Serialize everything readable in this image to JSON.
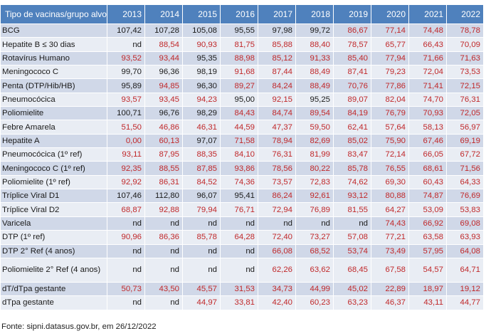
{
  "table": {
    "header_label": "Tipo de vacinas/grupo alvo",
    "years": [
      "2013",
      "2014",
      "2015",
      "2016",
      "2017",
      "2018",
      "2019",
      "2020",
      "2021",
      "2022"
    ],
    "low_color": "#c0282a",
    "header_color": "#4f81bd",
    "rows": [
      {
        "name": "BCG",
        "values": [
          "107,42",
          "107,28",
          "105,08",
          "95,55",
          "97,98",
          "99,72",
          "86,67",
          "77,14",
          "74,48",
          "78,78"
        ],
        "low": [
          false,
          false,
          false,
          false,
          false,
          false,
          true,
          true,
          true,
          true
        ]
      },
      {
        "name": "Hepatite B ≤ 30 dias",
        "values": [
          "nd",
          "88,54",
          "90,93",
          "81,75",
          "85,88",
          "88,40",
          "78,57",
          "65,77",
          "66,43",
          "70,09"
        ],
        "low": [
          false,
          true,
          true,
          true,
          true,
          true,
          true,
          true,
          true,
          true
        ]
      },
      {
        "name": "Rotavírus Humano",
        "values": [
          "93,52",
          "93,44",
          "95,35",
          "88,98",
          "85,12",
          "91,33",
          "85,40",
          "77,94",
          "71,66",
          "71,63"
        ],
        "low": [
          true,
          true,
          false,
          true,
          true,
          true,
          true,
          true,
          true,
          true
        ]
      },
      {
        "name": "Meningococo C",
        "values": [
          "99,70",
          "96,36",
          "98,19",
          "91,68",
          "87,44",
          "88,49",
          "87,41",
          "79,23",
          "72,04",
          "73,53"
        ],
        "low": [
          false,
          false,
          false,
          true,
          true,
          true,
          true,
          true,
          true,
          true
        ]
      },
      {
        "name": "Penta (DTP/Hib/HB)",
        "values": [
          "95,89",
          "94,85",
          "96,30",
          "89,27",
          "84,24",
          "88,49",
          "70,76",
          "77,86",
          "71,41",
          "72,15"
        ],
        "low": [
          false,
          true,
          false,
          true,
          true,
          true,
          true,
          true,
          true,
          true
        ]
      },
      {
        "name": "Pneumocócica",
        "values": [
          "93,57",
          "93,45",
          "94,23",
          "95,00",
          "92,15",
          "95,25",
          "89,07",
          "82,04",
          "74,70",
          "76,31"
        ],
        "low": [
          true,
          true,
          true,
          false,
          true,
          false,
          true,
          true,
          true,
          true
        ]
      },
      {
        "name": "Poliomielite",
        "values": [
          "100,71",
          "96,76",
          "98,29",
          "84,43",
          "84,74",
          "89,54",
          "84,19",
          "76,79",
          "70,93",
          "72,05"
        ],
        "low": [
          false,
          false,
          false,
          true,
          true,
          true,
          true,
          true,
          true,
          true
        ]
      },
      {
        "name": "Febre Amarela",
        "values": [
          "51,50",
          "46,86",
          "46,31",
          "44,59",
          "47,37",
          "59,50",
          "62,41",
          "57,64",
          "58,13",
          "56,97"
        ],
        "low": [
          true,
          true,
          true,
          true,
          true,
          true,
          true,
          true,
          true,
          true
        ]
      },
      {
        "name": "Hepatite A",
        "values": [
          "0,00",
          "60,13",
          "97,07",
          "71,58",
          "78,94",
          "82,69",
          "85,02",
          "75,90",
          "67,46",
          "69,19"
        ],
        "low": [
          true,
          true,
          false,
          true,
          true,
          true,
          true,
          true,
          true,
          true
        ]
      },
      {
        "name": "Pneumocócica (1º ref)",
        "values": [
          "93,11",
          "87,95",
          "88,35",
          "84,10",
          "76,31",
          "81,99",
          "83,47",
          "72,14",
          "66,05",
          "67,72"
        ],
        "low": [
          true,
          true,
          true,
          true,
          true,
          true,
          true,
          true,
          true,
          true
        ]
      },
      {
        "name": "Meningococo C (1º ref)",
        "values": [
          "92,35",
          "88,55",
          "87,85",
          "93,86",
          "78,56",
          "80,22",
          "85,78",
          "76,55",
          "68,61",
          "71,56"
        ],
        "low": [
          true,
          true,
          true,
          true,
          true,
          true,
          true,
          true,
          true,
          true
        ]
      },
      {
        "name": "Poliomielite  (1º ref)",
        "values": [
          "92,92",
          "86,31",
          "84,52",
          "74,36",
          "73,57",
          "72,83",
          "74,62",
          "69,30",
          "60,43",
          "64,33"
        ],
        "low": [
          true,
          true,
          true,
          true,
          true,
          true,
          true,
          true,
          true,
          true
        ]
      },
      {
        "name": "Tríplice Viral  D1",
        "values": [
          "107,46",
          "112,80",
          "96,07",
          "95,41",
          "86,24",
          "92,61",
          "93,12",
          "80,88",
          "74,87",
          "76,69"
        ],
        "low": [
          false,
          false,
          false,
          false,
          true,
          true,
          true,
          true,
          true,
          true
        ]
      },
      {
        "name": "Tríplice Viral  D2",
        "values": [
          "68,87",
          "92,88",
          "79,94",
          "76,71",
          "72,94",
          "76,89",
          "81,55",
          "64,27",
          "53,09",
          "53,83"
        ],
        "low": [
          true,
          true,
          true,
          true,
          true,
          true,
          true,
          true,
          true,
          true
        ]
      },
      {
        "name": "Varicela",
        "values": [
          "nd",
          "nd",
          "nd",
          "nd",
          "nd",
          "nd",
          "nd",
          "74,43",
          "66,92",
          "69,08"
        ],
        "low": [
          false,
          false,
          false,
          false,
          false,
          false,
          false,
          true,
          true,
          true
        ]
      },
      {
        "name": "DTP (1º ref)",
        "values": [
          "90,96",
          "86,36",
          "85,78",
          "64,28",
          "72,40",
          "73,27",
          "57,08",
          "77,21",
          "63,58",
          "63,93"
        ],
        "low": [
          true,
          true,
          true,
          true,
          true,
          true,
          true,
          true,
          true,
          true
        ]
      },
      {
        "name": "DTP 2° Ref (4 anos)",
        "values": [
          "nd",
          "nd",
          "nd",
          "nd",
          "66,08",
          "68,52",
          "53,74",
          "73,49",
          "57,95",
          "64,08"
        ],
        "low": [
          false,
          false,
          false,
          false,
          true,
          true,
          true,
          true,
          true,
          true
        ]
      },
      {
        "name": "Poliomielite  2° Ref (4 anos)",
        "values": [
          "nd",
          "nd",
          "nd",
          "nd",
          "62,26",
          "63,62",
          "68,45",
          "67,58",
          "54,57",
          "64,71"
        ],
        "low": [
          false,
          false,
          false,
          false,
          true,
          true,
          true,
          true,
          true,
          true
        ],
        "tall": true
      },
      {
        "name": "dT/dTpa gestante",
        "values": [
          "50,73",
          "43,50",
          "45,57",
          "31,53",
          "34,73",
          "44,99",
          "45,02",
          "22,89",
          "18,97",
          "19,12"
        ],
        "low": [
          true,
          true,
          true,
          true,
          true,
          true,
          true,
          true,
          true,
          true
        ]
      },
      {
        "name": "dTpa gestante",
        "values": [
          "nd",
          "nd",
          "44,97",
          "33,81",
          "42,40",
          "60,23",
          "63,23",
          "46,37",
          "43,11",
          "44,77"
        ],
        "low": [
          false,
          false,
          true,
          true,
          true,
          true,
          true,
          true,
          true,
          true
        ]
      }
    ]
  },
  "source": "Fonte: sipni.datasus.gov.br, em 26/12/2022"
}
